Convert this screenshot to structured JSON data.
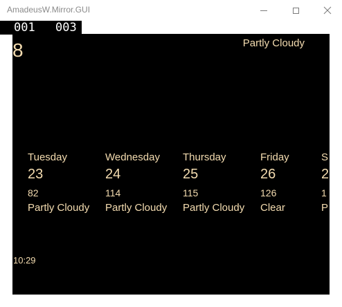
{
  "window": {
    "title": "AmadeusW.Mirror.GUI"
  },
  "counter": {
    "first": "001",
    "second": "003"
  },
  "current": {
    "temperature": "8",
    "condition": "Partly Cloudy"
  },
  "forecast": [
    {
      "day": "Tuesday",
      "date": "23",
      "value": "82",
      "condition": "Partly Cloudy"
    },
    {
      "day": "Wednesday",
      "date": "24",
      "value": "114",
      "condition": "Partly Cloudy"
    },
    {
      "day": "Thursday",
      "date": "25",
      "value": "115",
      "condition": "Partly Cloudy"
    },
    {
      "day": "Friday",
      "date": "26",
      "value": "126",
      "condition": "Clear"
    },
    {
      "day": "S",
      "date": "2",
      "value": "1",
      "condition": "P"
    }
  ],
  "clock": {
    "time": "10:29"
  },
  "colors": {
    "text": "#f4dcb0",
    "background": "#000000"
  }
}
